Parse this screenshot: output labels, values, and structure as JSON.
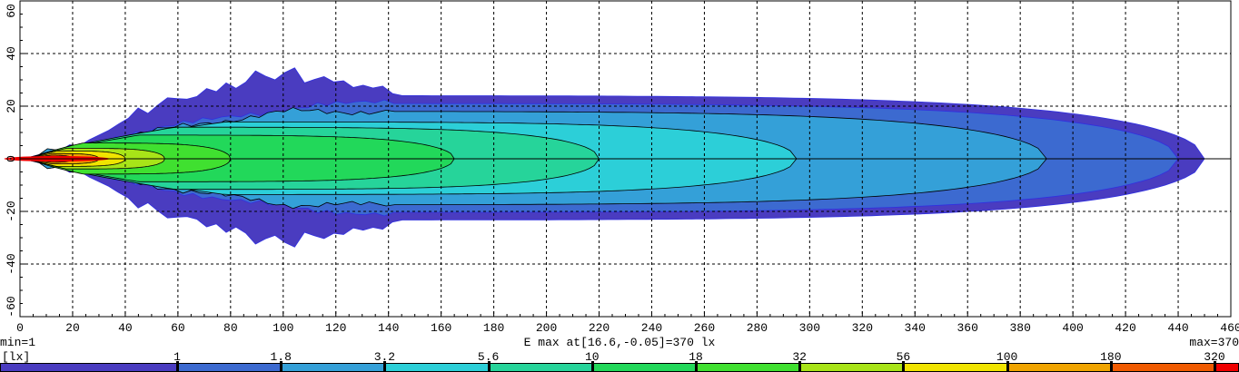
{
  "chart_data": {
    "type": "heatmap",
    "xlim": [
      0,
      460
    ],
    "ylim": [
      -60,
      60
    ],
    "x_ticks": [
      0,
      20,
      40,
      60,
      80,
      100,
      120,
      140,
      160,
      180,
      200,
      220,
      240,
      260,
      280,
      300,
      320,
      340,
      360,
      380,
      400,
      420,
      440,
      460
    ],
    "y_ticks": [
      60,
      40,
      20,
      0,
      -20,
      -40,
      -60
    ],
    "grid": true,
    "unit": "[lx]",
    "min_label": "min=1",
    "max_label": "max=370",
    "emax_label": "E max at[16.6,-0.05]=370 lx",
    "levels": [
      "1",
      "1.8",
      "3.2",
      "5.6",
      "10",
      "18",
      "32",
      "56",
      "100",
      "180",
      "320"
    ],
    "colors": [
      "#4a3cc0",
      "#3c6ad0",
      "#34a0d8",
      "#2ccfd8",
      "#26d49a",
      "#22d85a",
      "#40e030",
      "#a8e418",
      "#f0e400",
      "#f0a400",
      "#f05a00",
      "#f00000"
    ],
    "contour_extent_x": [
      450,
      440,
      390,
      295,
      220,
      165,
      80,
      55,
      40,
      30,
      20
    ],
    "contour_halfwidth_y": [
      24,
      21,
      18,
      14,
      12,
      9,
      6,
      4,
      3,
      2,
      1.4
    ]
  }
}
